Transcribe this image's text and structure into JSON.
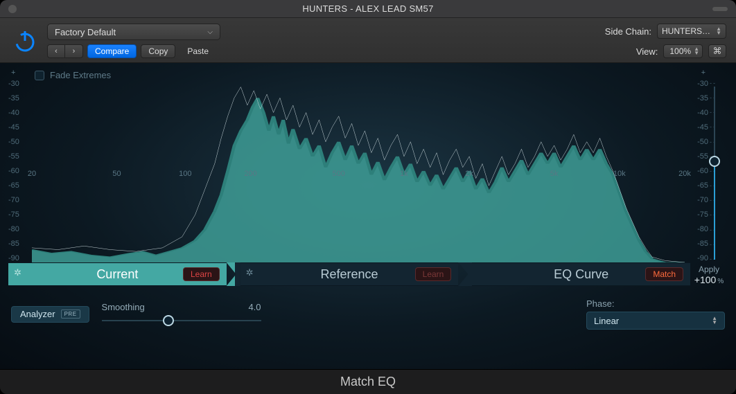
{
  "window": {
    "title": "HUNTERS  - ALEX LEAD SM57"
  },
  "toolbar": {
    "preset": "Factory Default",
    "nav_prev": "‹",
    "nav_next": "›",
    "compare": "Compare",
    "copy": "Copy",
    "paste": "Paste",
    "sidechain_label": "Side Chain:",
    "sidechain_value": "HUNTERS…",
    "view_label": "View:",
    "view_value": "100%"
  },
  "chart": {
    "fade_label": "Fade Extremes",
    "plus": "+",
    "y_ticks": [
      "-30",
      "-35",
      "-40",
      "-45",
      "-50",
      "-55",
      "-60",
      "-65",
      "-70",
      "-75",
      "-80",
      "-85",
      "-90"
    ],
    "x_ticks": [
      {
        "label": "20",
        "pos": 0.0
      },
      {
        "label": "50",
        "pos": 0.13
      },
      {
        "label": "100",
        "pos": 0.235
      },
      {
        "label": "200",
        "pos": 0.335
      },
      {
        "label": "500",
        "pos": 0.47
      },
      {
        "label": "1k",
        "pos": 0.57
      },
      {
        "label": "2k",
        "pos": 0.67
      },
      {
        "label": "5k",
        "pos": 0.8
      },
      {
        "label": "10k",
        "pos": 0.9
      },
      {
        "label": "20k",
        "pos": 1.0
      }
    ],
    "colors": {
      "area_fill": "#3e9d97",
      "area_stroke": "#2d7f7a",
      "ref_line": "#c8d6da",
      "axis_text": "#5a7785",
      "background_inner": "#1b3442",
      "background_outer": "#060c12"
    },
    "current_series": [
      [
        0,
        93
      ],
      [
        3,
        95
      ],
      [
        6,
        94
      ],
      [
        9,
        96
      ],
      [
        12,
        97
      ],
      [
        15,
        95
      ],
      [
        17,
        94
      ],
      [
        19,
        96
      ],
      [
        21,
        94
      ],
      [
        23,
        92
      ],
      [
        25,
        88
      ],
      [
        26.5,
        82
      ],
      [
        28,
        72
      ],
      [
        29,
        63
      ],
      [
        30,
        50
      ],
      [
        31,
        36
      ],
      [
        32,
        28
      ],
      [
        33,
        22
      ],
      [
        33.8,
        15
      ],
      [
        34.6,
        10
      ],
      [
        35.5,
        18
      ],
      [
        36.3,
        28
      ],
      [
        37,
        20
      ],
      [
        37.8,
        30
      ],
      [
        38.5,
        22
      ],
      [
        39.3,
        35
      ],
      [
        40,
        27
      ],
      [
        41,
        38
      ],
      [
        42,
        32
      ],
      [
        43,
        42
      ],
      [
        44,
        36
      ],
      [
        45,
        48
      ],
      [
        46,
        40
      ],
      [
        47,
        34
      ],
      [
        48,
        44
      ],
      [
        49,
        36
      ],
      [
        50,
        46
      ],
      [
        51,
        40
      ],
      [
        52,
        52
      ],
      [
        53,
        45
      ],
      [
        54,
        55
      ],
      [
        55,
        48
      ],
      [
        56,
        42
      ],
      [
        57,
        52
      ],
      [
        58,
        46
      ],
      [
        59,
        56
      ],
      [
        60,
        50
      ],
      [
        61,
        58
      ],
      [
        62,
        52
      ],
      [
        63,
        60
      ],
      [
        64,
        54
      ],
      [
        65,
        48
      ],
      [
        66,
        56
      ],
      [
        67,
        50
      ],
      [
        68,
        60
      ],
      [
        69,
        54
      ],
      [
        70,
        62
      ],
      [
        71,
        56
      ],
      [
        72,
        48
      ],
      [
        73,
        56
      ],
      [
        74,
        50
      ],
      [
        75,
        44
      ],
      [
        76,
        52
      ],
      [
        77,
        46
      ],
      [
        78,
        40
      ],
      [
        79,
        46
      ],
      [
        80,
        40
      ],
      [
        81,
        48
      ],
      [
        82,
        42
      ],
      [
        83,
        36
      ],
      [
        84,
        44
      ],
      [
        85,
        38
      ],
      [
        86,
        44
      ],
      [
        87,
        38
      ],
      [
        88,
        46
      ],
      [
        89,
        52
      ],
      [
        90,
        62
      ],
      [
        91,
        72
      ],
      [
        92,
        80
      ],
      [
        93,
        88
      ],
      [
        94,
        94
      ],
      [
        95,
        98
      ],
      [
        97,
        100
      ],
      [
        100,
        100
      ]
    ],
    "reference_series": [
      [
        0,
        92
      ],
      [
        4,
        93
      ],
      [
        8,
        91
      ],
      [
        12,
        93
      ],
      [
        16,
        94
      ],
      [
        20,
        92
      ],
      [
        23,
        86
      ],
      [
        25,
        74
      ],
      [
        26.5,
        60
      ],
      [
        28,
        46
      ],
      [
        29,
        32
      ],
      [
        30,
        20
      ],
      [
        31,
        10
      ],
      [
        32,
        4
      ],
      [
        33,
        14
      ],
      [
        34,
        6
      ],
      [
        35,
        16
      ],
      [
        36,
        8
      ],
      [
        37,
        18
      ],
      [
        38,
        10
      ],
      [
        39,
        22
      ],
      [
        40,
        14
      ],
      [
        41,
        26
      ],
      [
        42,
        18
      ],
      [
        43,
        30
      ],
      [
        44,
        22
      ],
      [
        45,
        34
      ],
      [
        46,
        26
      ],
      [
        47,
        20
      ],
      [
        48,
        32
      ],
      [
        49,
        24
      ],
      [
        50,
        36
      ],
      [
        51,
        28
      ],
      [
        52,
        40
      ],
      [
        53,
        32
      ],
      [
        54,
        44
      ],
      [
        55,
        36
      ],
      [
        56,
        30
      ],
      [
        57,
        42
      ],
      [
        58,
        34
      ],
      [
        59,
        46
      ],
      [
        60,
        38
      ],
      [
        61,
        48
      ],
      [
        62,
        40
      ],
      [
        63,
        52
      ],
      [
        64,
        44
      ],
      [
        65,
        38
      ],
      [
        66,
        48
      ],
      [
        67,
        42
      ],
      [
        68,
        54
      ],
      [
        69,
        46
      ],
      [
        70,
        58
      ],
      [
        71,
        50
      ],
      [
        72,
        42
      ],
      [
        73,
        52
      ],
      [
        74,
        46
      ],
      [
        75,
        38
      ],
      [
        76,
        48
      ],
      [
        77,
        42
      ],
      [
        78,
        34
      ],
      [
        79,
        42
      ],
      [
        80,
        36
      ],
      [
        81,
        44
      ],
      [
        82,
        38
      ],
      [
        83,
        30
      ],
      [
        84,
        40
      ],
      [
        85,
        34
      ],
      [
        86,
        40
      ],
      [
        87,
        32
      ],
      [
        88,
        42
      ],
      [
        89,
        50
      ],
      [
        90,
        60
      ],
      [
        91,
        70
      ],
      [
        92,
        78
      ],
      [
        93,
        86
      ],
      [
        94,
        92
      ],
      [
        95,
        97
      ],
      [
        97,
        99
      ],
      [
        100,
        100
      ]
    ],
    "vslider_pos": 0.4
  },
  "tabs": {
    "current": "Current",
    "reference": "Reference",
    "eqcurve": "EQ Curve",
    "learn": "Learn",
    "match": "Match",
    "active_index": 0
  },
  "apply": {
    "label": "Apply",
    "value": "+100",
    "unit": "%"
  },
  "bottom": {
    "analyzer": "Analyzer",
    "analyzer_mode": "PRE",
    "smoothing_label": "Smoothing",
    "smoothing_value": "4.0",
    "smoothing_pos": 0.42,
    "phase_label": "Phase:",
    "phase_value": "Linear"
  },
  "footer": {
    "name": "Match EQ"
  }
}
